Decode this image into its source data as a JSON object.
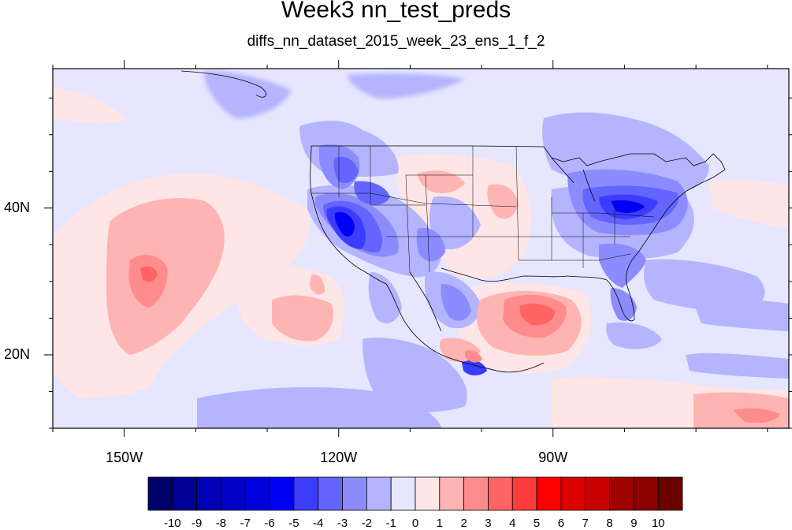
{
  "title": "Week3 nn_test_preds",
  "subtitle": "diffs_nn_dataset_2015_week_23_ens_1_f_2",
  "axes": {
    "x_ticks": [
      {
        "value": -150,
        "label": "150W"
      },
      {
        "value": -120,
        "label": "120W"
      },
      {
        "value": -90,
        "label": "90W"
      }
    ],
    "y_ticks": [
      {
        "value": 40,
        "label": "40N"
      },
      {
        "value": 20,
        "label": "20N"
      }
    ],
    "lon_range": [
      -160,
      -57
    ],
    "lat_range": [
      10,
      59
    ]
  },
  "colorbar": {
    "labels": [
      "-10",
      "-9",
      "-8",
      "-7",
      "-6",
      "-5",
      "-4",
      "-3",
      "-2",
      "-1",
      "0",
      "1",
      "2",
      "3",
      "4",
      "5",
      "6",
      "7",
      "8",
      "9",
      "10"
    ],
    "colors": [
      "#00006b",
      "#000096",
      "#0000b4",
      "#0000c8",
      "#0000dc",
      "#0000f5",
      "#3c3cff",
      "#6464ff",
      "#8c8cff",
      "#b4b4ff",
      "#e6e6ff",
      "#ffe6e6",
      "#ffb4b4",
      "#ff8c8c",
      "#ff6464",
      "#ff3c3c",
      "#ff0000",
      "#dc0000",
      "#c80000",
      "#a00000",
      "#8c0000",
      "#6b0000"
    ]
  }
}
